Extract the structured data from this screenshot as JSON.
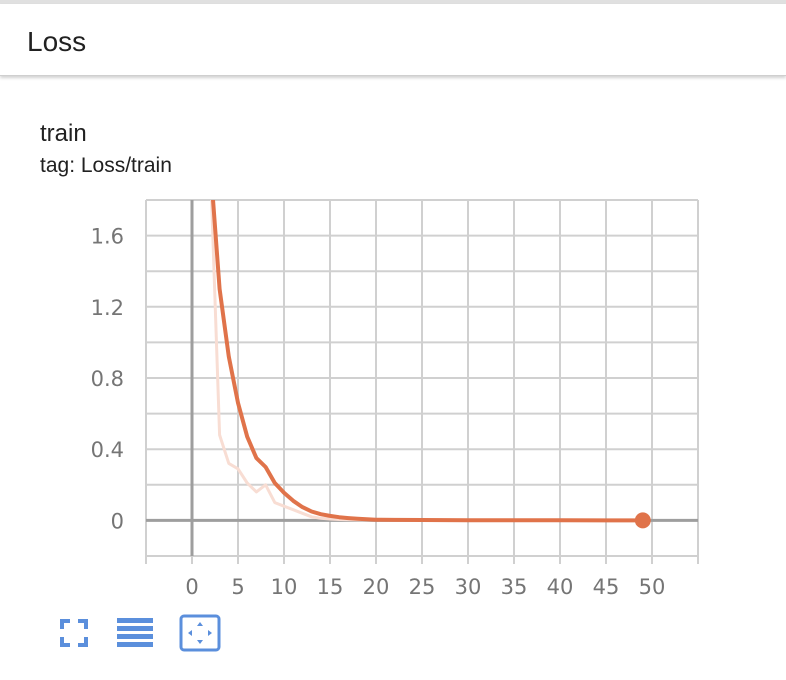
{
  "card": {
    "title": "Loss"
  },
  "run": {
    "title": "train",
    "tag": "tag: Loss/train"
  },
  "toolbar": {
    "buttons": [
      {
        "icon": "fullscreen-icon"
      },
      {
        "icon": "data-selection-icon"
      },
      {
        "icon": "fit-domain-icon"
      }
    ]
  },
  "colors": {
    "series": "#e0734a",
    "series_raw": "#f8ddd3",
    "icon": "#5b8fdc"
  },
  "chart_data": {
    "type": "line",
    "title": "",
    "xlabel": "",
    "ylabel": "",
    "xlim": [
      -5,
      55
    ],
    "ylim": [
      -0.2,
      1.8
    ],
    "grid": true,
    "x_ticks": [
      0,
      5,
      10,
      15,
      20,
      25,
      30,
      35,
      40,
      45,
      50
    ],
    "x_tick_labels": [
      "0",
      "5",
      "10",
      "15",
      "20",
      "25",
      "30",
      "35",
      "40",
      "45",
      "50"
    ],
    "y_ticks": [
      0,
      0.4,
      0.8,
      1.2,
      1.6
    ],
    "y_tick_labels": [
      "0",
      "0.4",
      "0.8",
      "1.2",
      "1.6"
    ],
    "series": [
      {
        "style": "smoothed",
        "x": [
          2,
          3,
          4,
          5,
          6,
          7,
          8,
          9,
          10,
          11,
          12,
          13,
          14,
          15,
          16,
          17,
          18,
          19,
          20,
          22,
          25,
          30,
          35,
          40,
          45,
          49
        ],
        "y": [
          2.0,
          1.3,
          0.92,
          0.66,
          0.47,
          0.35,
          0.3,
          0.21,
          0.155,
          0.11,
          0.075,
          0.05,
          0.035,
          0.025,
          0.018,
          0.013,
          0.009,
          0.006,
          0.004,
          0.003,
          0.002,
          0.001,
          0.0005,
          0.0003,
          0.0002,
          0.0001
        ],
        "marker_last": true
      },
      {
        "style": "raw",
        "x": [
          2,
          3,
          4,
          5,
          6,
          7,
          8,
          9,
          10,
          11,
          12,
          13,
          14,
          15,
          16,
          18,
          20,
          25,
          30,
          35,
          40,
          45,
          49
        ],
        "y": [
          2.0,
          0.48,
          0.32,
          0.29,
          0.21,
          0.16,
          0.2,
          0.1,
          0.08,
          0.06,
          0.04,
          0.02,
          0.012,
          0.008,
          0.005,
          0.003,
          0.002,
          0.001,
          0.0005,
          0.0003,
          0.0002,
          0.0001,
          0.0001
        ]
      }
    ]
  }
}
